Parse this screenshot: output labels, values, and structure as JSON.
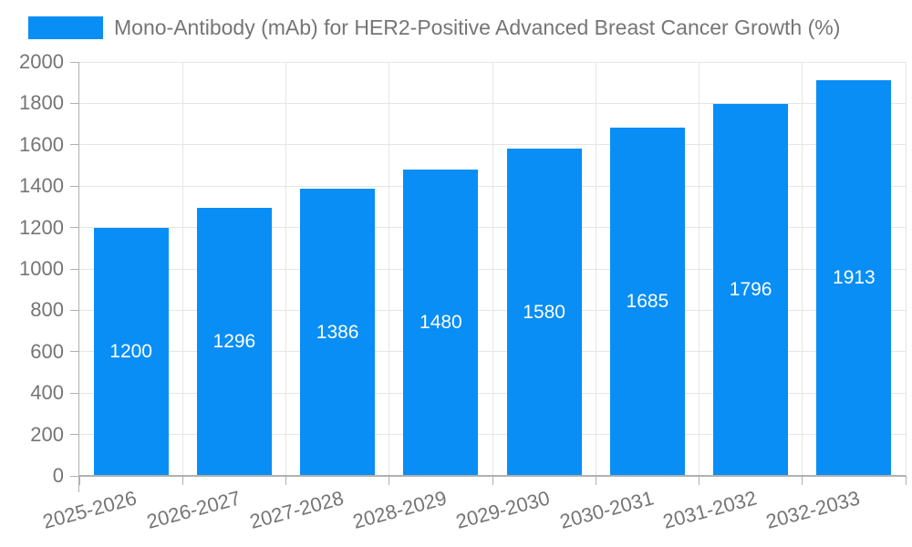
{
  "chart_data": {
    "type": "bar",
    "title": "Mono-Antibody (mAb) for HER2-Positive Advanced Breast Cancer Growth (%)",
    "categories": [
      "2025-2026",
      "2026-2027",
      "2027-2028",
      "2028-2029",
      "2029-2030",
      "2030-2031",
      "2031-2032",
      "2032-2033"
    ],
    "values": [
      1200,
      1296,
      1386,
      1480,
      1580,
      1685,
      1796,
      1913
    ],
    "xlabel": "",
    "ylabel": "",
    "ylim": [
      0,
      2000
    ],
    "ytick_step": 200,
    "yticks": [
      0,
      200,
      400,
      600,
      800,
      1000,
      1200,
      1400,
      1600,
      1800,
      2000
    ],
    "grid": true,
    "legend_position": "top-left",
    "value_labels_shown": true,
    "colors": {
      "bar": "#088EF5",
      "value_label": "#FFFFFF",
      "grid": "#E6E6E6",
      "axis": "#B0B0B0",
      "tick_label": "#757575",
      "background": "#FFFFFF"
    }
  }
}
